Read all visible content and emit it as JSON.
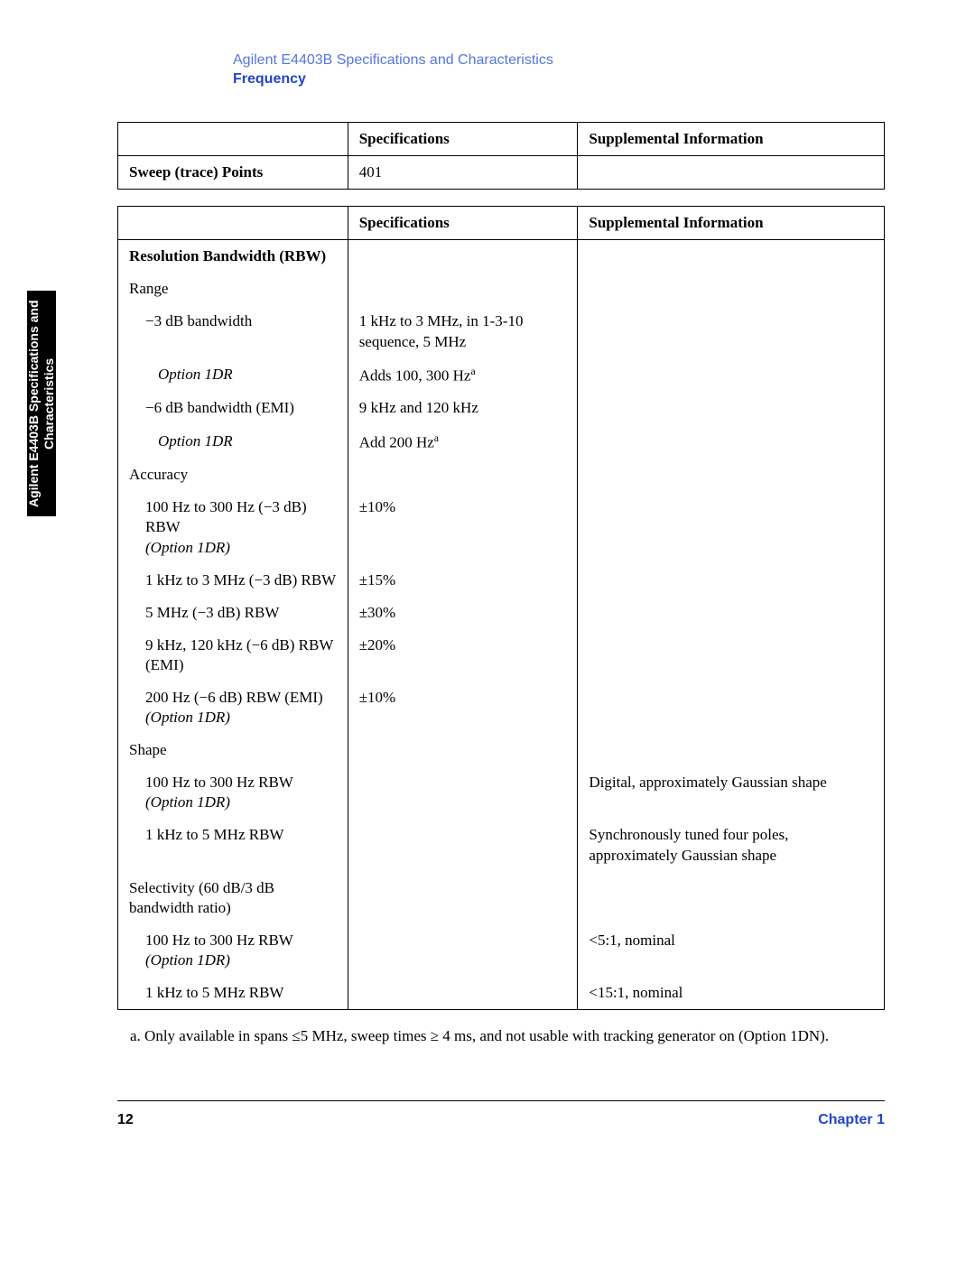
{
  "sideTab": "Agilent E4403B Specifications and Characteristics",
  "headerSubtitle": "Agilent E4403B Specifications and Characteristics",
  "headerSection": "Frequency",
  "table1": {
    "headers": [
      "",
      "Specifications",
      "Supplemental Information"
    ],
    "rows": [
      {
        "label": "Sweep (trace) Points",
        "spec": "401",
        "supp": "",
        "labelBold": true
      }
    ]
  },
  "table2": {
    "headers": [
      "",
      "Specifications",
      "Supplemental Information"
    ],
    "rows": [
      {
        "label": "Resolution Bandwidth (RBW)",
        "spec": "",
        "supp": "",
        "labelBold": true,
        "indent": 0
      },
      {
        "label": "Range",
        "spec": "",
        "supp": "",
        "indent": 0
      },
      {
        "label": "−3 dB bandwidth",
        "spec": "1 kHz to 3 MHz, in 1-3-10 sequence, 5 MHz",
        "supp": "",
        "indent": 1
      },
      {
        "label": "Option 1DR",
        "spec": "Adds 100, 300 Hz",
        "specSup": "a",
        "supp": "",
        "indent": 2,
        "italic": true
      },
      {
        "label": "−6 dB bandwidth (EMI)",
        "spec": "9 kHz and 120 kHz",
        "supp": "",
        "indent": 1
      },
      {
        "label": "Option 1DR",
        "spec": "Add 200 Hz",
        "specSup": "a",
        "supp": "",
        "indent": 2,
        "italic": true
      },
      {
        "label": "Accuracy",
        "spec": "",
        "supp": "",
        "indent": 0
      },
      {
        "label": "100 Hz to 300 Hz (−3 dB) RBW",
        "label2": "(Option 1DR)",
        "label2Italic": true,
        "spec": "±10%",
        "supp": "",
        "indent": 1
      },
      {
        "label": "1 kHz to 3 MHz (−3 dB) RBW",
        "spec": "±15%",
        "supp": "",
        "indent": 1
      },
      {
        "label": "5 MHz (−3 dB) RBW",
        "spec": "±30%",
        "supp": "",
        "indent": 1
      },
      {
        "label": "9 kHz, 120 kHz (−6 dB) RBW",
        "label2": "(EMI)",
        "spec": "±20%",
        "supp": "",
        "indent": 1
      },
      {
        "label": "200 Hz (−6 dB) RBW (EMI)",
        "label2": "(Option 1DR)",
        "label2Italic": true,
        "spec": "±10%",
        "supp": "",
        "indent": 1
      },
      {
        "label": "Shape",
        "spec": "",
        "supp": "",
        "indent": 0
      },
      {
        "label": "100 Hz to 300 Hz RBW",
        "label2": "(Option 1DR)",
        "label2Italic": true,
        "spec": "",
        "supp": "Digital, approximately Gaussian shape",
        "indent": 1
      },
      {
        "label": "1 kHz to 5 MHz RBW",
        "spec": "",
        "supp": "Synchronously tuned four poles, approximately Gaussian shape",
        "indent": 1
      },
      {
        "label": "Selectivity (60 dB/3 dB bandwidth ratio)",
        "spec": "",
        "supp": "",
        "indent": 0
      },
      {
        "label": "100 Hz to 300 Hz RBW",
        "label2": "(Option 1DR)",
        "label2Italic": true,
        "spec": "",
        "supp": "<5:1, nominal",
        "indent": 1
      },
      {
        "label": "1 kHz to 5 MHz RBW",
        "spec": "",
        "supp": "<15:1, nominal",
        "indent": 1
      }
    ]
  },
  "footnote": "a. Only available in spans ≤5 MHz, sweep times ≥ 4 ms, and not usable with tracking generator on (Option 1DN).",
  "pageNumber": "12",
  "chapter": "Chapter 1"
}
